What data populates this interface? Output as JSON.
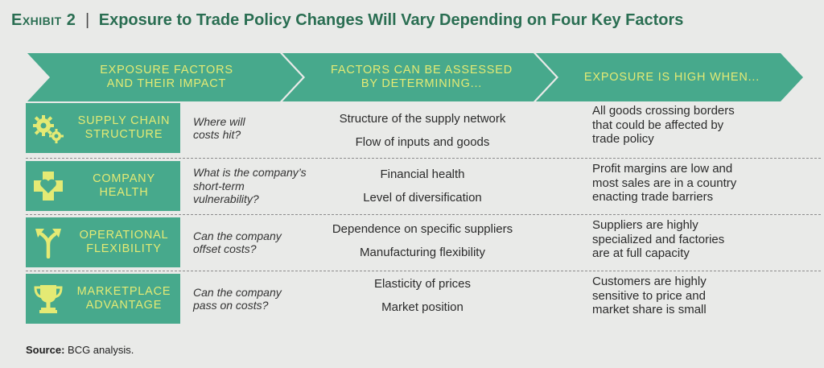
{
  "title": {
    "exhibit": "Exhibit 2",
    "separator": "|",
    "text": "Exposure to Trade Policy Changes Will Vary Depending on Four Key Factors"
  },
  "headers": [
    {
      "line1": "Exposure factors",
      "line2": "and their impact"
    },
    {
      "line1": "Factors can be assessed",
      "line2": "by determining..."
    },
    {
      "line1": "Exposure is high when...",
      "line2": ""
    }
  ],
  "rows": [
    {
      "icon": "gears-icon",
      "factor_line1": "Supply chain",
      "factor_line2": "structure",
      "question_line1": "Where will",
      "question_line2": "costs hit?",
      "question_line3": "",
      "assess": [
        "Structure of the supply network",
        "Flow of inputs and goods"
      ],
      "exposure": [
        "All goods crossing borders",
        "that could be affected by",
        "trade policy"
      ]
    },
    {
      "icon": "medical-heart-icon",
      "factor_line1": "Company",
      "factor_line2": "health",
      "question_line1": "What is the company’s",
      "question_line2": "short-term",
      "question_line3": "vulnerability?",
      "assess": [
        "Financial health",
        "Level of diversification"
      ],
      "exposure": [
        "Profit margins are low and",
        "most sales are in a country",
        "enacting trade barriers"
      ]
    },
    {
      "icon": "split-arrows-icon",
      "factor_line1": "Operational",
      "factor_line2": "flexibility",
      "question_line1": "Can the company",
      "question_line2": "offset costs?",
      "question_line3": "",
      "assess": [
        "Dependence on specific suppliers",
        "Manufacturing flexibility"
      ],
      "exposure": [
        "Suppliers are highly",
        "specialized and factories",
        "are at full capacity"
      ]
    },
    {
      "icon": "trophy-icon",
      "factor_line1": "Marketplace",
      "factor_line2": "advantage",
      "question_line1": "Can the company",
      "question_line2": "pass on costs?",
      "question_line3": "",
      "assess": [
        "Elasticity of prices",
        "Market position"
      ],
      "exposure": [
        "Customers are highly",
        "sensitive to price and",
        "market share is small"
      ]
    }
  ],
  "source": {
    "label": "Source:",
    "text": " BCG analysis."
  },
  "colors": {
    "title": "#2a6e52",
    "accent_green": "#47a98c",
    "accent_yellow": "#e4ea74",
    "background": "#e9eae8"
  }
}
